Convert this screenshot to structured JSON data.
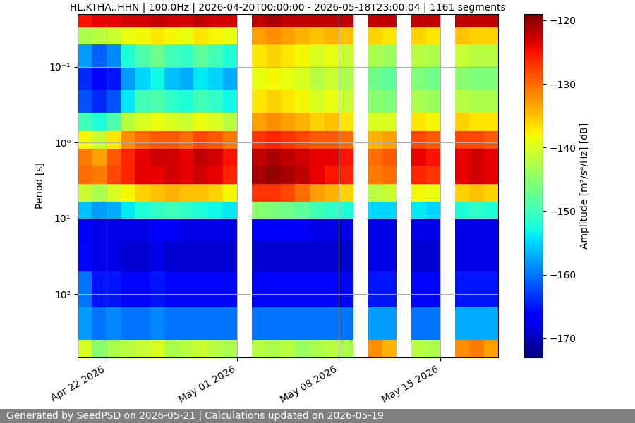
{
  "chart_data": {
    "type": "heatmap",
    "title": "HL.KTHA..HHN | 100.0Hz | 2026-04-20T00:00:00 - 2026-05-18T23:00:04 | 1161 segments",
    "ylabel": "Period [s]",
    "footer": "Generated by SeedPSD on 2026-05-21 | Calculations updated on 2026-05-19",
    "log": "y",
    "grid": true,
    "xlim": [
      "2026-04-20T00:00:00",
      "2026-05-18T23:00:04"
    ],
    "xticks": [
      {
        "value": "2026-04-22",
        "label": "Apr 22 2026"
      },
      {
        "value": "2026-05-01",
        "label": "May 01 2026"
      },
      {
        "value": "2026-05-08",
        "label": "May 08 2026"
      },
      {
        "value": "2026-05-15",
        "label": "May 15 2026"
      }
    ],
    "ylim": [
      680,
      0.02
    ],
    "yticks": [
      {
        "value": 0.1,
        "label": "10⁻¹"
      },
      {
        "value": 1,
        "label": "10⁰"
      },
      {
        "value": 10,
        "label": "10¹"
      },
      {
        "value": 100,
        "label": "10²"
      }
    ],
    "x": [
      "2026-04-20",
      "2026-04-21",
      "2026-04-22",
      "2026-04-23",
      "2026-04-24",
      "2026-04-25",
      "2026-04-26",
      "2026-04-27",
      "2026-04-28",
      "2026-04-29",
      "2026-04-30",
      "2026-05-01",
      "2026-05-02",
      "2026-05-03",
      "2026-05-04",
      "2026-05-05",
      "2026-05-06",
      "2026-05-07",
      "2026-05-08",
      "2026-05-09",
      "2026-05-10",
      "2026-05-11",
      "2026-05-12",
      "2026-05-13",
      "2026-05-14",
      "2026-05-15",
      "2026-05-16",
      "2026-05-17",
      "2026-05-18",
      "2026-05-19"
    ],
    "y": [
      0.02,
      0.03,
      0.05,
      0.1,
      0.2,
      0.4,
      0.7,
      1.2,
      2,
      3.5,
      6,
      10,
      20,
      50,
      150,
      400,
      680
    ],
    "values": [
      [
        -125,
        -143,
        -158,
        -164,
        -162,
        -150,
        -138,
        -131,
        -130,
        -141,
        -156,
        -167,
        -166,
        -160,
        -158,
        -140
      ],
      [
        -124,
        -142,
        -161,
        -166,
        -164,
        -152,
        -141,
        -133,
        -131,
        -143,
        -158,
        -168,
        -168,
        -165,
        -160,
        -145
      ],
      [
        -124,
        -141,
        -159,
        -165,
        -162,
        -149,
        -137,
        -129,
        -128,
        -140,
        -157,
        -168,
        -168,
        -165,
        -159,
        -143
      ],
      [
        -123,
        -139,
        -152,
        -158,
        -154,
        -142,
        -132,
        -126,
        -126,
        -138,
        -154,
        -168,
        -169,
        -166,
        -160,
        -142
      ],
      [
        -123,
        -138,
        -149,
        -155,
        -150,
        -140,
        -130,
        -124,
        -124,
        -136,
        -152,
        -168,
        -169,
        -166,
        -160,
        -141
      ],
      [
        -122,
        -137,
        -147,
        -153,
        -149,
        -139,
        -129,
        -123,
        -124,
        -135,
        -151,
        -167,
        -168,
        -165,
        -159,
        -140
      ],
      [
        -123,
        -138,
        -150,
        -156,
        -151,
        -140,
        -129,
        -123,
        -123,
        -134,
        -150,
        -167,
        -169,
        -166,
        -160,
        -143
      ],
      [
        -123,
        -139,
        -151,
        -157,
        -152,
        -141,
        -130,
        -124,
        -124,
        -135,
        -151,
        -168,
        -169,
        -166,
        -160,
        -142
      ],
      [
        -122,
        -137,
        -148,
        -154,
        -150,
        -139,
        -128,
        -122,
        -123,
        -135,
        -152,
        -168,
        -169,
        -166,
        -160,
        -141
      ],
      [
        -123,
        -138,
        -150,
        -155,
        -151,
        -140,
        -129,
        -123,
        -124,
        -136,
        -153,
        -168,
        -169,
        -166,
        -160,
        -142
      ],
      [
        -123,
        -139,
        -152,
        -157,
        -153,
        -142,
        -131,
        -125,
        -126,
        -138,
        -154,
        -168,
        -169,
        -166,
        -160,
        -143
      ],
      null,
      [
        -122,
        -133,
        -137,
        -139,
        -137,
        -133,
        -127,
        -122,
        -121,
        -127,
        -145,
        -167,
        -169,
        -166,
        -160,
        -142
      ],
      [
        -121,
        -132,
        -136,
        -138,
        -136,
        -132,
        -126,
        -121,
        -120,
        -127,
        -146,
        -167,
        -169,
        -166,
        -160,
        -143
      ],
      [
        -122,
        -133,
        -137,
        -139,
        -137,
        -133,
        -127,
        -122,
        -121,
        -128,
        -147,
        -167,
        -169,
        -166,
        -160,
        -142
      ],
      [
        -122,
        -134,
        -138,
        -140,
        -138,
        -134,
        -128,
        -123,
        -122,
        -130,
        -148,
        -167,
        -169,
        -166,
        -160,
        -144
      ],
      [
        -122,
        -135,
        -140,
        -142,
        -140,
        -136,
        -129,
        -124,
        -124,
        -133,
        -150,
        -168,
        -169,
        -166,
        -160,
        -143
      ],
      [
        -122,
        -134,
        -139,
        -141,
        -139,
        -135,
        -129,
        -124,
        -125,
        -134,
        -151,
        -168,
        -169,
        -166,
        -160,
        -142
      ],
      [
        -122,
        -135,
        -141,
        -143,
        -141,
        -137,
        -130,
        -125,
        -126,
        -136,
        -152,
        -168,
        -169,
        -166,
        -160,
        -143
      ],
      null,
      [
        -122,
        -136,
        -143,
        -147,
        -145,
        -140,
        -134,
        -130,
        -131,
        -142,
        -155,
        -168,
        -168,
        -165,
        -158,
        -132
      ],
      [
        -122,
        -137,
        -144,
        -148,
        -146,
        -140,
        -133,
        -129,
        -130,
        -141,
        -155,
        -168,
        -168,
        -165,
        -158,
        -134
      ],
      null,
      [
        -122,
        -136,
        -142,
        -146,
        -143,
        -137,
        -128,
        -124,
        -126,
        -138,
        -154,
        -168,
        -169,
        -166,
        -160,
        -142
      ],
      [
        -122,
        -137,
        -143,
        -147,
        -144,
        -138,
        -129,
        -125,
        -127,
        -139,
        -155,
        -168,
        -169,
        -166,
        -160,
        -143
      ],
      null,
      [
        -122,
        -135,
        -141,
        -145,
        -142,
        -136,
        -128,
        -124,
        -124,
        -136,
        -152,
        -168,
        -168,
        -165,
        -157,
        -132
      ],
      [
        -122,
        -136,
        -142,
        -146,
        -143,
        -137,
        -128,
        -123,
        -123,
        -135,
        -151,
        -168,
        -168,
        -165,
        -157,
        -131
      ],
      [
        -122,
        -136,
        -142,
        -146,
        -143,
        -137,
        -129,
        -124,
        -124,
        -136,
        -152,
        -168,
        -168,
        -165,
        -157,
        -133
      ]
    ],
    "colorbar": {
      "label": "Amplitude [m²/s⁴/Hz] [dB]",
      "range": [
        -173,
        -119
      ],
      "ticks": [
        {
          "value": -120,
          "label": "−120"
        },
        {
          "value": -130,
          "label": "−130"
        },
        {
          "value": -140,
          "label": "−140"
        },
        {
          "value": -150,
          "label": "−150"
        },
        {
          "value": -160,
          "label": "−160"
        },
        {
          "value": -170,
          "label": "−170"
        }
      ]
    }
  }
}
